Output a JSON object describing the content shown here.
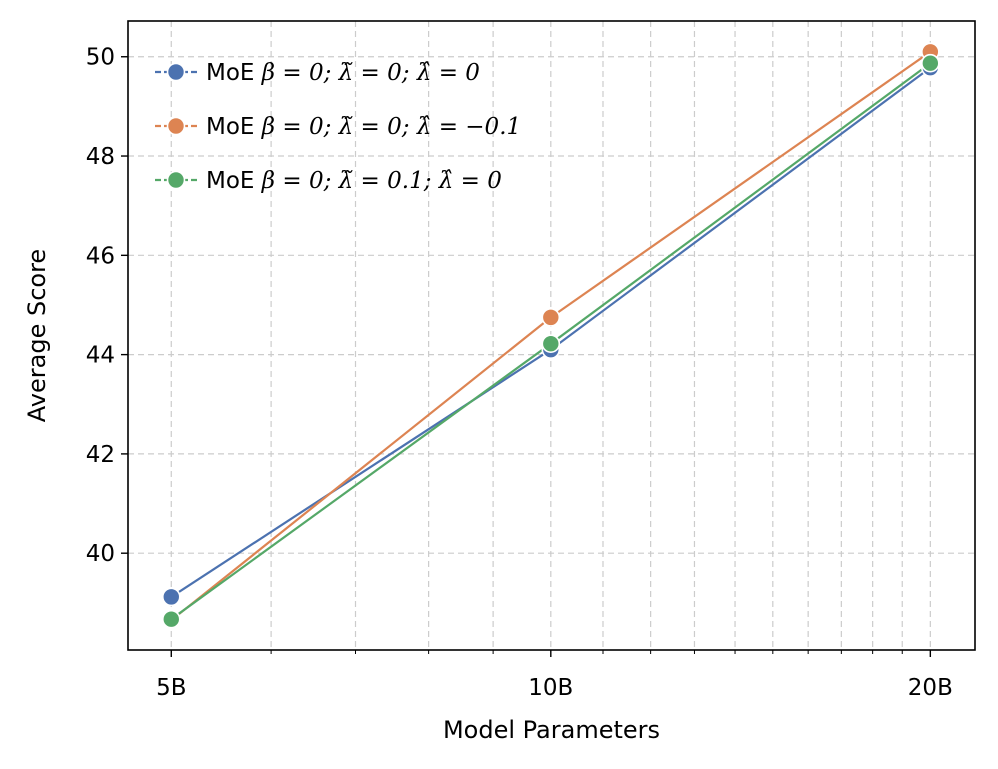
{
  "chart_data": {
    "type": "line",
    "xlabel": "Model Parameters",
    "ylabel": "Average Score",
    "x_scale": "log",
    "x": [
      5,
      10,
      20
    ],
    "x_tick_labels": [
      "5B",
      "10B",
      "20B"
    ],
    "xlim": [
      4.62,
      21.7
    ],
    "ylim": [
      38.05,
      50.72
    ],
    "y_ticks": [
      40,
      42,
      44,
      46,
      48,
      50
    ],
    "grid": true,
    "legend_position": "upper-left",
    "series": [
      {
        "name_prefix": "MoE",
        "name_math": "β = 0;  λ̃ = 0;  λ̂ = 0",
        "color": "#4c72b0",
        "values": [
          39.12,
          44.1,
          49.78
        ]
      },
      {
        "name_prefix": "MoE",
        "name_math": "β = 0;  λ̃ = 0;  λ̂ = −0.1",
        "color": "#dd8452",
        "values": [
          38.65,
          44.75,
          50.1
        ]
      },
      {
        "name_prefix": "MoE",
        "name_math": "β = 0;  λ̃ = 0.1;  λ̂ = 0",
        "color": "#55a868",
        "values": [
          38.67,
          44.22,
          49.87
        ]
      }
    ]
  }
}
